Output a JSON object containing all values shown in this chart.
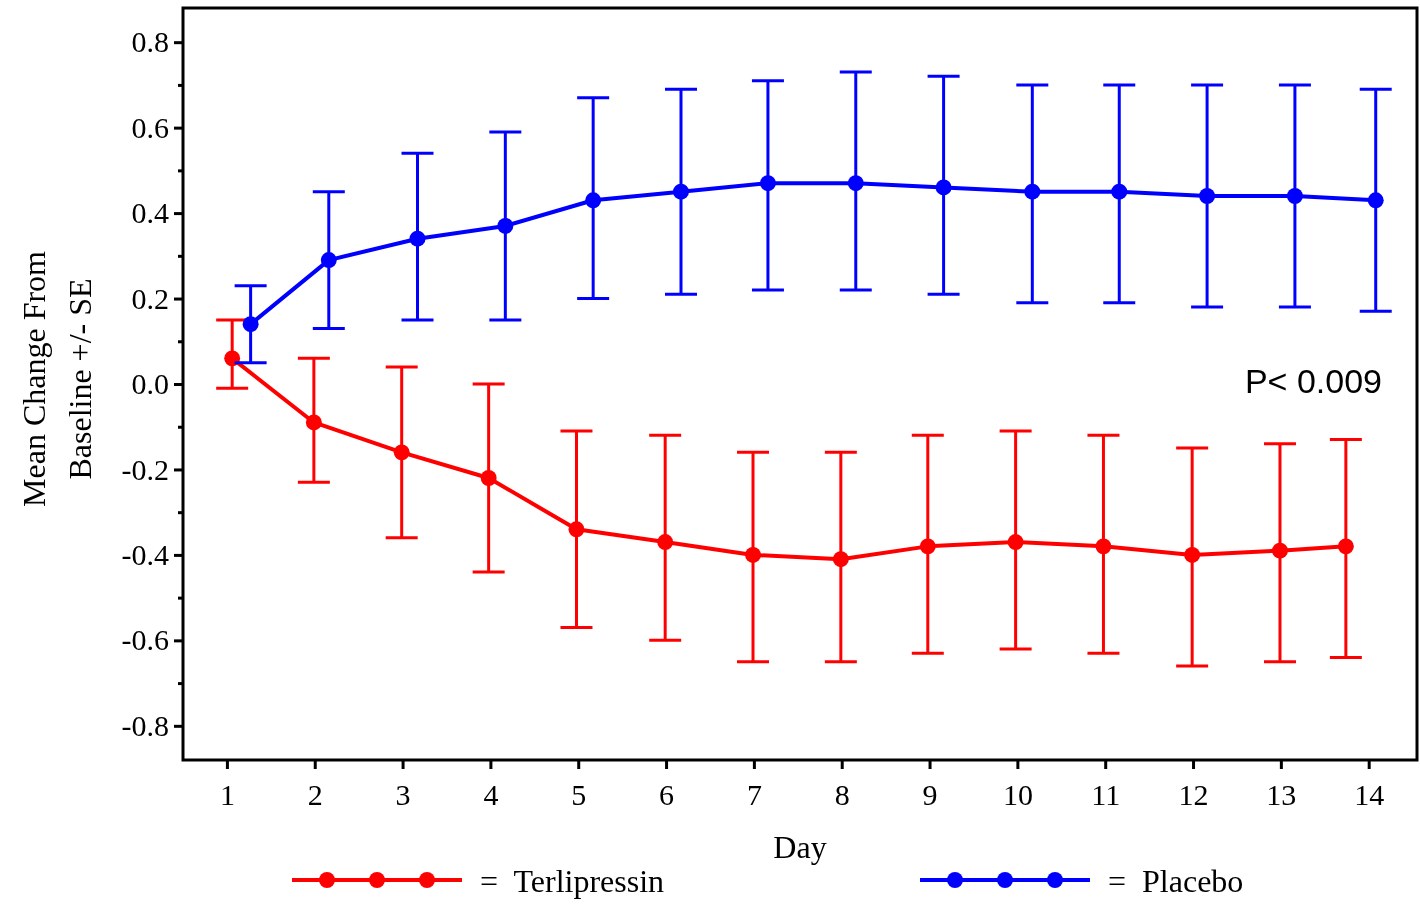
{
  "chart_data": {
    "type": "line",
    "xlabel": "Day",
    "ylabel": "Mean Change From\nBaseline +/- SE",
    "xlim": [
      0.5,
      14.55
    ],
    "xticks": [
      1,
      2,
      3,
      4,
      5,
      6,
      7,
      8,
      9,
      10,
      11,
      12,
      13,
      14
    ],
    "ylim": [
      -0.88,
      0.88
    ],
    "yticks": [
      {
        "value": -0.8,
        "label": "-0.8"
      },
      {
        "value": -0.7,
        "label": null
      },
      {
        "value": -0.6,
        "label": "-0.6"
      },
      {
        "value": -0.5,
        "label": null
      },
      {
        "value": -0.4,
        "label": "-0.4"
      },
      {
        "value": -0.3,
        "label": null
      },
      {
        "value": -0.2,
        "label": "-0.2"
      },
      {
        "value": -0.1,
        "label": null
      },
      {
        "value": 0,
        "label": "0.0"
      },
      {
        "value": 0.1,
        "label": null
      },
      {
        "value": 0.2,
        "label": "0.2"
      },
      {
        "value": 0.3,
        "label": null
      },
      {
        "value": 0.4,
        "label": "0.4"
      },
      {
        "value": 0.5,
        "label": null
      },
      {
        "value": 0.6,
        "label": "0.6"
      },
      {
        "value": 0.7,
        "label": null
      },
      {
        "value": 0.8,
        "label": "0.8"
      }
    ],
    "marker": "circle",
    "line_style": "solid",
    "grid": false,
    "legend": "bottom",
    "annotations": [
      "P< 0.009"
    ],
    "series": [
      {
        "name": "= Terlipressin",
        "color": "#ff0000",
        "x": [
          1.06,
          1.99,
          2.99,
          3.98,
          4.98,
          5.99,
          6.99,
          7.99,
          8.98,
          9.98,
          10.98,
          11.99,
          12.99,
          13.74
        ],
        "values": [
          0.06,
          -0.09,
          -0.16,
          -0.22,
          -0.34,
          -0.37,
          -0.4,
          -0.41,
          -0.38,
          -0.37,
          -0.38,
          -0.4,
          -0.39,
          -0.38
        ],
        "errors": [
          [
            -0.01,
            0.15
          ],
          [
            -0.23,
            0.06
          ],
          [
            -0.36,
            0.04
          ],
          [
            -0.44,
            0.0
          ],
          [
            -0.57,
            -0.11
          ],
          [
            -0.6,
            -0.12
          ],
          [
            -0.65,
            -0.16
          ],
          [
            -0.65,
            -0.16
          ],
          [
            -0.63,
            -0.12
          ],
          [
            -0.62,
            -0.11
          ],
          [
            -0.63,
            -0.12
          ],
          [
            -0.66,
            -0.15
          ],
          [
            -0.65,
            -0.14
          ],
          [
            -0.64,
            -0.13
          ]
        ]
      },
      {
        "name": "= Placebo",
        "color": "#0000ff",
        "x": [
          1.27,
          2.16,
          3.17,
          4.17,
          5.17,
          6.17,
          7.16,
          8.16,
          9.16,
          10.17,
          11.16,
          12.16,
          13.16,
          14.08
        ],
        "values": [
          0.14,
          0.29,
          0.34,
          0.37,
          0.43,
          0.45,
          0.47,
          0.47,
          0.46,
          0.45,
          0.45,
          0.44,
          0.44,
          0.43
        ],
        "errors": [
          [
            0.05,
            0.23
          ],
          [
            0.13,
            0.45
          ],
          [
            0.15,
            0.54
          ],
          [
            0.15,
            0.59
          ],
          [
            0.2,
            0.67
          ],
          [
            0.21,
            0.69
          ],
          [
            0.22,
            0.71
          ],
          [
            0.22,
            0.73
          ],
          [
            0.21,
            0.72
          ],
          [
            0.19,
            0.7
          ],
          [
            0.19,
            0.7
          ],
          [
            0.18,
            0.7
          ],
          [
            0.18,
            0.7
          ],
          [
            0.17,
            0.69
          ]
        ]
      }
    ]
  }
}
